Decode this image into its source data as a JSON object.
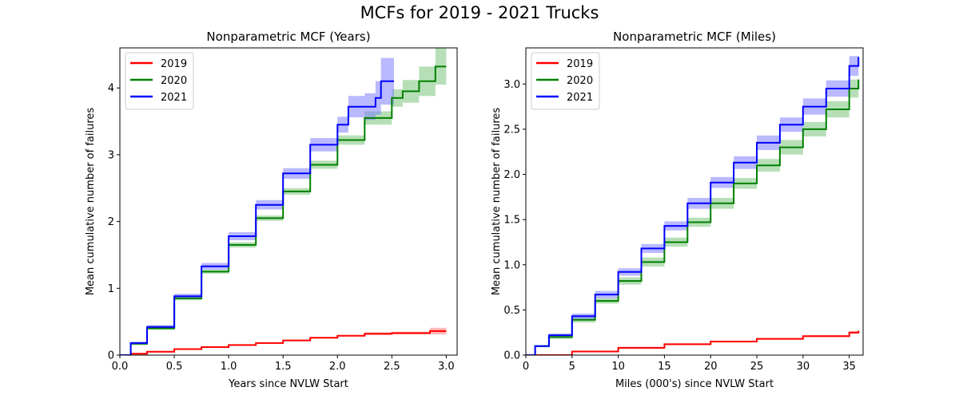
{
  "figure": {
    "suptitle": "MCFs for 2019 - 2021 Trucks"
  },
  "chart_data": [
    {
      "type": "line",
      "title": "Nonparametric MCF (Years)",
      "xlabel": "Years since NVLW Start",
      "ylabel": "Mean cumulative number of failures",
      "xlim": [
        0,
        3.1
      ],
      "ylim": [
        0,
        4.6
      ],
      "xticks": [
        "0.0",
        "0.5",
        "1.0",
        "1.5",
        "2.0",
        "2.5",
        "3.0"
      ],
      "yticks": [
        "0",
        "1",
        "2",
        "3",
        "4"
      ],
      "legend_position": "top-left",
      "grid": false,
      "series": [
        {
          "name": "2019",
          "color": "#ff0000",
          "band_color": "#ff8080",
          "x": [
            0.0,
            0.1,
            0.25,
            0.5,
            0.75,
            1.0,
            1.25,
            1.5,
            1.75,
            2.0,
            2.25,
            2.5,
            2.75,
            2.85,
            3.0
          ],
          "y": [
            0.0,
            0.02,
            0.05,
            0.09,
            0.12,
            0.15,
            0.18,
            0.22,
            0.26,
            0.29,
            0.32,
            0.33,
            0.33,
            0.36,
            0.36
          ],
          "lower": [
            0.0,
            0.01,
            0.04,
            0.08,
            0.11,
            0.14,
            0.17,
            0.21,
            0.25,
            0.28,
            0.3,
            0.31,
            0.31,
            0.31,
            0.31
          ],
          "upper": [
            0.0,
            0.03,
            0.06,
            0.1,
            0.13,
            0.16,
            0.19,
            0.23,
            0.27,
            0.3,
            0.34,
            0.35,
            0.35,
            0.41,
            0.41
          ]
        },
        {
          "name": "2020",
          "color": "#008000",
          "band_color": "#7cc47c",
          "x": [
            0.0,
            0.1,
            0.25,
            0.5,
            0.75,
            1.0,
            1.25,
            1.5,
            1.75,
            2.0,
            2.25,
            2.5,
            2.6,
            2.75,
            2.9,
            3.0
          ],
          "y": [
            0.0,
            0.17,
            0.4,
            0.85,
            1.25,
            1.65,
            2.05,
            2.45,
            2.85,
            3.22,
            3.55,
            3.85,
            3.95,
            4.1,
            4.32,
            4.32
          ],
          "lower": [
            0.0,
            0.15,
            0.38,
            0.82,
            1.22,
            1.61,
            2.01,
            2.4,
            2.79,
            3.15,
            3.45,
            3.72,
            3.78,
            3.88,
            4.05,
            4.05
          ],
          "upper": [
            0.0,
            0.19,
            0.42,
            0.88,
            1.28,
            1.69,
            2.09,
            2.5,
            2.91,
            3.29,
            3.65,
            3.98,
            4.12,
            4.32,
            4.6,
            4.6
          ]
        },
        {
          "name": "2021",
          "color": "#0000ff",
          "band_color": "#8080ff",
          "x": [
            0.0,
            0.1,
            0.25,
            0.5,
            0.75,
            1.0,
            1.25,
            1.5,
            1.75,
            2.0,
            2.1,
            2.25,
            2.35,
            2.4,
            2.5,
            2.52
          ],
          "y": [
            0.0,
            0.18,
            0.42,
            0.88,
            1.33,
            1.78,
            2.25,
            2.72,
            3.15,
            3.45,
            3.72,
            3.72,
            3.85,
            4.1,
            4.1,
            4.1
          ],
          "lower": [
            0.0,
            0.16,
            0.39,
            0.84,
            1.28,
            1.72,
            2.18,
            2.64,
            3.05,
            3.33,
            3.56,
            3.52,
            3.6,
            3.75,
            3.75,
            3.75
          ],
          "upper": [
            0.0,
            0.2,
            0.45,
            0.92,
            1.38,
            1.84,
            2.32,
            2.8,
            3.25,
            3.57,
            3.88,
            3.92,
            4.1,
            4.45,
            4.45,
            4.45
          ]
        }
      ]
    },
    {
      "type": "line",
      "title": "Nonparametric MCF (Miles)",
      "xlabel": "Miles (000's) since NVLW Start",
      "ylabel": "Mean cumulative number of failures",
      "xlim": [
        0,
        36.5
      ],
      "ylim": [
        0,
        3.4
      ],
      "xticks": [
        "0",
        "5",
        "10",
        "15",
        "20",
        "25",
        "30",
        "35"
      ],
      "yticks": [
        "0.0",
        "0.5",
        "1.0",
        "1.5",
        "2.0",
        "2.5",
        "3.0"
      ],
      "legend_position": "top-left",
      "grid": false,
      "series": [
        {
          "name": "2019",
          "color": "#ff0000",
          "band_color": "#ff8080",
          "x": [
            0,
            5,
            10,
            15,
            20,
            25,
            30,
            35,
            36
          ],
          "y": [
            0.0,
            0.04,
            0.08,
            0.12,
            0.15,
            0.18,
            0.21,
            0.25,
            0.27
          ],
          "lower": [
            0.0,
            0.035,
            0.07,
            0.11,
            0.14,
            0.17,
            0.2,
            0.235,
            0.25
          ],
          "upper": [
            0.0,
            0.045,
            0.09,
            0.13,
            0.16,
            0.19,
            0.22,
            0.265,
            0.29
          ]
        },
        {
          "name": "2020",
          "color": "#008000",
          "band_color": "#7cc47c",
          "x": [
            0,
            1,
            2.5,
            5,
            7.5,
            10,
            12.5,
            15,
            17.5,
            20,
            22.5,
            25,
            27.5,
            30,
            32.5,
            35,
            36
          ],
          "y": [
            0.0,
            0.1,
            0.2,
            0.39,
            0.6,
            0.82,
            1.03,
            1.25,
            1.47,
            1.68,
            1.9,
            2.1,
            2.3,
            2.5,
            2.72,
            2.95,
            3.05
          ],
          "lower": [
            0.0,
            0.09,
            0.18,
            0.36,
            0.57,
            0.78,
            0.98,
            1.2,
            1.42,
            1.62,
            1.84,
            2.03,
            2.22,
            2.42,
            2.63,
            2.85,
            2.94
          ],
          "upper": [
            0.0,
            0.11,
            0.22,
            0.42,
            0.63,
            0.86,
            1.08,
            1.3,
            1.52,
            1.74,
            1.96,
            2.17,
            2.38,
            2.58,
            2.81,
            3.05,
            3.16
          ]
        },
        {
          "name": "2021",
          "color": "#0000ff",
          "band_color": "#8080ff",
          "x": [
            0,
            1,
            2.5,
            5,
            7.5,
            10,
            12.5,
            15,
            17.5,
            20,
            22.5,
            25,
            27.5,
            30,
            32.5,
            35,
            36
          ],
          "y": [
            0.0,
            0.1,
            0.22,
            0.43,
            0.67,
            0.92,
            1.18,
            1.43,
            1.68,
            1.91,
            2.13,
            2.35,
            2.55,
            2.75,
            2.95,
            3.2,
            3.3
          ],
          "lower": [
            0.0,
            0.09,
            0.2,
            0.4,
            0.63,
            0.88,
            1.13,
            1.38,
            1.62,
            1.85,
            2.06,
            2.27,
            2.47,
            2.66,
            2.86,
            3.09,
            3.18
          ],
          "upper": [
            0.0,
            0.11,
            0.24,
            0.46,
            0.71,
            0.96,
            1.23,
            1.48,
            1.74,
            1.97,
            2.2,
            2.43,
            2.63,
            2.84,
            3.04,
            3.31,
            3.42
          ]
        }
      ]
    }
  ]
}
